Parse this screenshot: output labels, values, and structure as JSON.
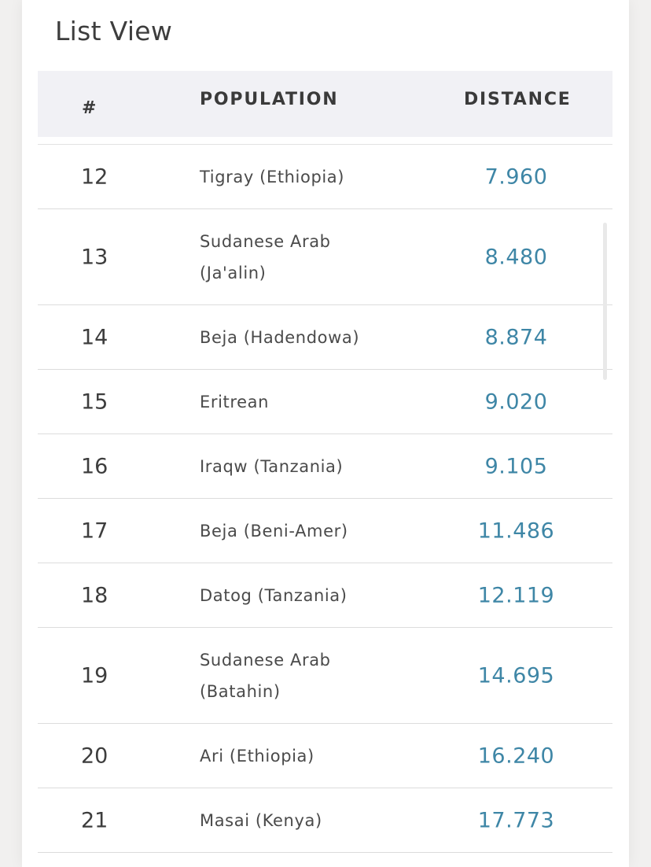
{
  "panel": {
    "title": "List View"
  },
  "table": {
    "headers": {
      "num": "#",
      "population": "POPULATION",
      "distance": "DISTANCE"
    },
    "rows": [
      {
        "num": "12",
        "population": "Tigray (Ethiopia)",
        "distance": "7.960"
      },
      {
        "num": "13",
        "population": "Sudanese Arab (Ja'alin)",
        "distance": "8.480"
      },
      {
        "num": "14",
        "population": "Beja (Hadendowa)",
        "distance": "8.874"
      },
      {
        "num": "15",
        "population": "Eritrean",
        "distance": "9.020"
      },
      {
        "num": "16",
        "population": "Iraqw (Tanzania)",
        "distance": "9.105"
      },
      {
        "num": "17",
        "population": "Beja (Beni-Amer)",
        "distance": "11.486"
      },
      {
        "num": "18",
        "population": "Datog (Tanzania)",
        "distance": "12.119"
      },
      {
        "num": "19",
        "population": "Sudanese Arab (Batahin)",
        "distance": "14.695"
      },
      {
        "num": "20",
        "population": "Ari (Ethiopia)",
        "distance": "16.240"
      },
      {
        "num": "21",
        "population": "Masai (Kenya)",
        "distance": "17.773"
      }
    ]
  },
  "colors": {
    "distance_accent": "#3e86a6",
    "header_background": "#f1f1f5"
  }
}
